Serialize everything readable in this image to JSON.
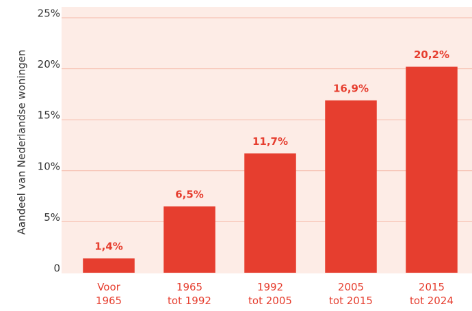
{
  "chart_data": {
    "type": "bar",
    "y_label": "Aandeel van Nederlandse woningen",
    "categories": [
      "Voor 1965",
      "1965 tot 1992",
      "1992 tot 2005",
      "2005 tot 2015",
      "2015 tot 2024"
    ],
    "values": [
      1.4,
      6.5,
      11.7,
      16.9,
      20.2
    ],
    "value_labels": [
      "1,4%",
      "6,5%",
      "11,7%",
      "16,9%",
      "20,2%"
    ],
    "color": "#e63e2f",
    "ylim": [
      0,
      25
    ],
    "yticks": [
      0,
      {
        "value": 5,
        "label": "5%"
      },
      {
        "value": 10,
        "label": "10%"
      },
      {
        "value": 15,
        "label": "15%"
      },
      {
        "value": 20,
        "label": "20%"
      },
      {
        "value": 25,
        "label": "25%"
      }
    ],
    "grid": true
  }
}
